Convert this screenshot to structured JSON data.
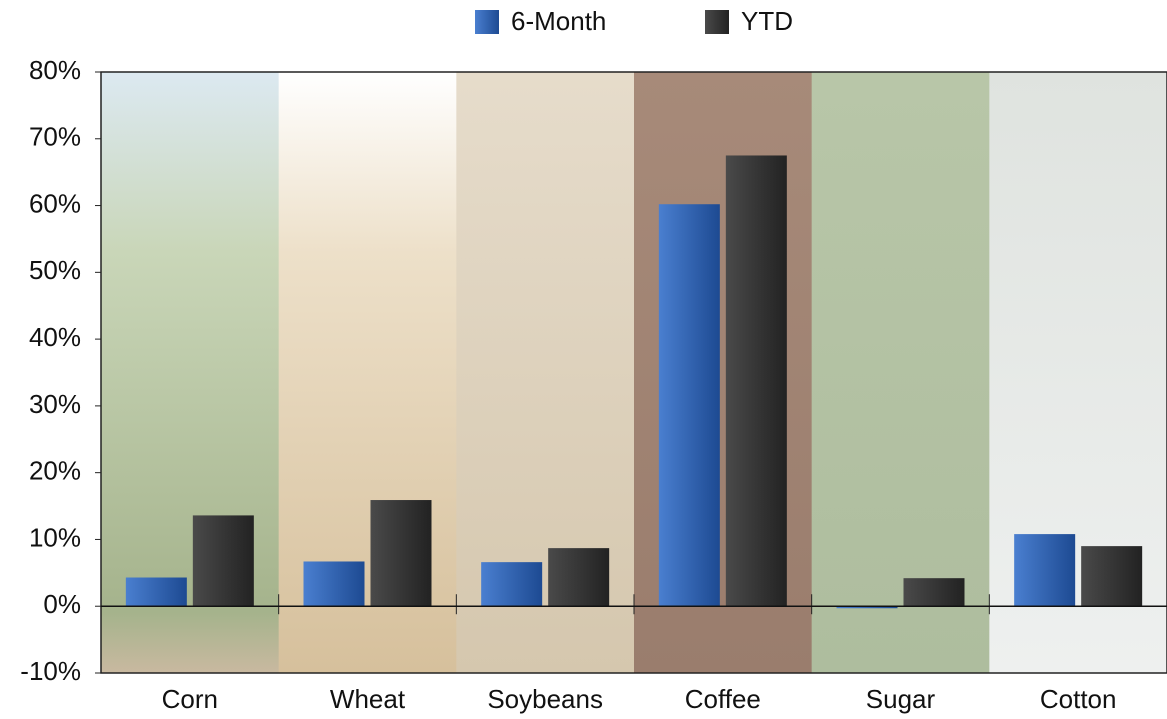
{
  "chart_data": {
    "type": "bar",
    "categories": [
      "Corn",
      "Wheat",
      "Soybeans",
      "Coffee",
      "Sugar",
      "Cotton"
    ],
    "series": [
      {
        "name": "6-Month",
        "color": "#2a5caa",
        "values": [
          4.3,
          6.7,
          6.6,
          60.2,
          -0.3,
          10.8
        ]
      },
      {
        "name": "YTD",
        "color": "#333333",
        "values": [
          13.6,
          15.9,
          8.7,
          67.5,
          4.2,
          9.0
        ]
      }
    ],
    "ylim": [
      -10,
      80
    ],
    "yticks": [
      {
        "value": -10,
        "label": "-10%"
      },
      {
        "value": 0,
        "label": "0%"
      },
      {
        "value": 10,
        "label": "10%"
      },
      {
        "value": 20,
        "label": "20%"
      },
      {
        "value": 30,
        "label": "30%"
      },
      {
        "value": 40,
        "label": "40%"
      },
      {
        "value": 50,
        "label": "50%"
      },
      {
        "value": 60,
        "label": "60%"
      },
      {
        "value": 70,
        "label": "70%"
      },
      {
        "value": 80,
        "label": "80%"
      }
    ],
    "legend": "top"
  }
}
